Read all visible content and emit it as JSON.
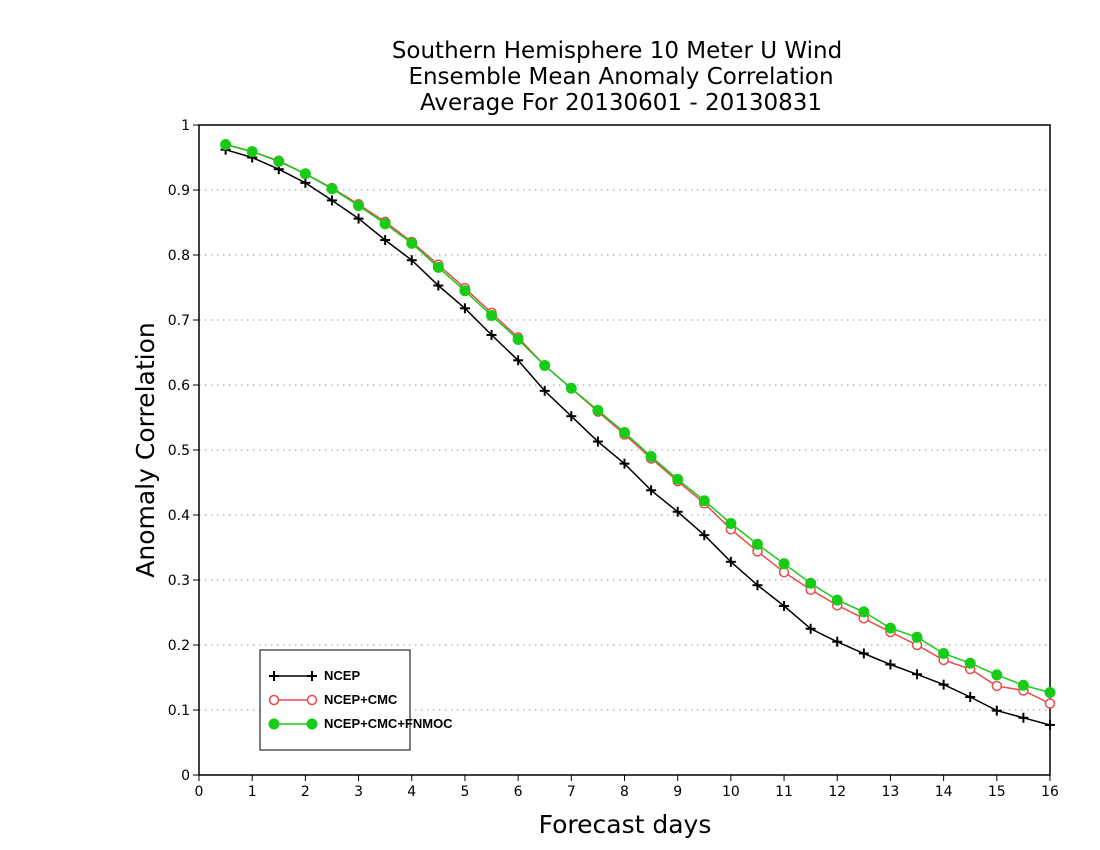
{
  "chart_data": {
    "type": "line",
    "title": [
      "Southern Hemisphere 10 Meter U Wind",
      "Ensemble Mean Anomaly Correlation",
      "Average For 20130601 - 20130831"
    ],
    "xlabel": "Forecast days",
    "ylabel": "Anomaly Correlation",
    "xlim": [
      0,
      16
    ],
    "ylim": [
      0,
      1
    ],
    "x_ticks": [
      "0",
      "1",
      "2",
      "3",
      "4",
      "5",
      "6",
      "7",
      "8",
      "9",
      "10",
      "11",
      "12",
      "13",
      "14",
      "15",
      "16"
    ],
    "y_ticks": [
      "0",
      "0.1",
      "0.2",
      "0.3",
      "0.4",
      "0.5",
      "0.6",
      "0.7",
      "0.8",
      "0.9",
      "1"
    ],
    "grid": "dotted horizontal",
    "legend_position": "bottom-left",
    "x": [
      0.5,
      1,
      1.5,
      2,
      2.5,
      3,
      3.5,
      4,
      4.5,
      5,
      5.5,
      6,
      6.5,
      7,
      7.5,
      8,
      8.5,
      9,
      9.5,
      10,
      10.5,
      11,
      11.5,
      12,
      12.5,
      13,
      13.5,
      14,
      14.5,
      15,
      15.5,
      16
    ],
    "series": [
      {
        "name": "NCEP",
        "color": "#000000",
        "marker": "plus",
        "values": [
          0.962,
          0.95,
          0.932,
          0.911,
          0.884,
          0.856,
          0.823,
          0.792,
          0.753,
          0.718,
          0.677,
          0.638,
          0.591,
          0.552,
          0.513,
          0.479,
          0.438,
          0.405,
          0.369,
          0.328,
          0.292,
          0.26,
          0.225,
          0.205,
          0.187,
          0.17,
          0.155,
          0.139,
          0.12,
          0.099,
          0.088,
          0.077
        ]
      },
      {
        "name": "NCEP+CMC",
        "color": "#e84a4a",
        "marker": "open-circle",
        "values": [
          0.97,
          0.959,
          0.945,
          0.925,
          0.903,
          0.878,
          0.851,
          0.82,
          0.785,
          0.749,
          0.711,
          0.673,
          0.63,
          0.595,
          0.559,
          0.524,
          0.487,
          0.452,
          0.418,
          0.378,
          0.344,
          0.312,
          0.285,
          0.261,
          0.241,
          0.22,
          0.2,
          0.177,
          0.163,
          0.137,
          0.13,
          0.11
        ]
      },
      {
        "name": "NCEP+CMC+FNMOC",
        "color": "#17cc17",
        "marker": "filled-circle",
        "values": [
          0.97,
          0.959,
          0.944,
          0.925,
          0.902,
          0.876,
          0.848,
          0.818,
          0.781,
          0.745,
          0.707,
          0.67,
          0.63,
          0.595,
          0.561,
          0.527,
          0.49,
          0.455,
          0.422,
          0.387,
          0.355,
          0.325,
          0.295,
          0.269,
          0.251,
          0.226,
          0.212,
          0.187,
          0.172,
          0.154,
          0.138,
          0.127
        ]
      }
    ]
  }
}
